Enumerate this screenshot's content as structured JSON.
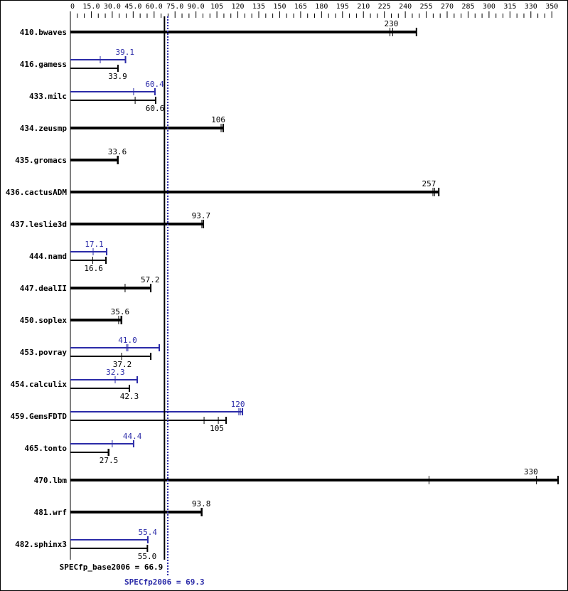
{
  "chart_data": {
    "type": "bar",
    "orientation": "horizontal",
    "xlim": [
      0,
      350
    ],
    "axis_position": "top",
    "tick_labels": [
      "0",
      "15.0",
      "30.0",
      "45.0",
      "60.0",
      "75.0",
      "90.0",
      "105",
      "120",
      "135",
      "150",
      "165",
      "180",
      "195",
      "210",
      "225",
      "240",
      "255",
      "270",
      "285",
      "300",
      "315",
      "330",
      "350"
    ],
    "colors": {
      "base": "#000000",
      "peak": "#2b2ba8"
    },
    "series": [
      {
        "name": "base",
        "label": "SPECfp_base2006 = 66.9",
        "geomean": 66.9
      },
      {
        "name": "peak",
        "label": "SPECfp2006 = 69.3",
        "geomean": 69.3
      }
    ],
    "benchmarks": [
      {
        "name": "410.bwaves",
        "base": 230,
        "base_label": "230",
        "base_runs": [
          229,
          231,
          248
        ]
      },
      {
        "name": "416.gamess",
        "base": 33.9,
        "base_label": "33.9",
        "base_runs": [
          34.1
        ],
        "peak": 39.1,
        "peak_label": "39.1",
        "peak_runs": [
          21.4,
          39.5
        ]
      },
      {
        "name": "433.milc",
        "base": 60.6,
        "base_label": "60.6",
        "base_runs": [
          46.4,
          61.1
        ],
        "peak": 60.4,
        "peak_label": "60.4",
        "peak_runs": [
          45.3,
          60.6
        ]
      },
      {
        "name": "434.zeusmp",
        "base": 106,
        "base_label": "106",
        "base_runs": [
          108,
          109.5
        ]
      },
      {
        "name": "435.gromacs",
        "base": 33.6,
        "base_label": "33.6",
        "base_runs": [
          33.6,
          34.1
        ]
      },
      {
        "name": "436.cactusADM",
        "base": 257,
        "base_label": "257",
        "base_runs": [
          259.8,
          261,
          264
        ]
      },
      {
        "name": "437.leslie3d",
        "base": 93.7,
        "base_label": "93.7",
        "base_runs": [
          94.2,
          95.3
        ]
      },
      {
        "name": "444.namd",
        "base": 16.6,
        "base_label": "16.6",
        "base_runs": [
          16,
          25.5
        ],
        "peak": 17.1,
        "peak_label": "17.1",
        "peak_runs": [
          16.3,
          26
        ]
      },
      {
        "name": "447.dealII",
        "base": 57.2,
        "base_label": "57.2",
        "base_runs": [
          39.2,
          57.6
        ]
      },
      {
        "name": "450.soplex",
        "base": 35.6,
        "base_label": "35.6",
        "base_runs": [
          34.6,
          36.2,
          36.7
        ]
      },
      {
        "name": "453.povray",
        "base": 37.2,
        "base_label": "37.2",
        "base_runs": [
          36.7,
          57.6
        ],
        "peak": 41.0,
        "peak_label": "41.0",
        "peak_runs": [
          40.2,
          41.2,
          63.7
        ]
      },
      {
        "name": "454.calculix",
        "base": 42.3,
        "base_label": "42.3",
        "base_runs": [
          42.3
        ],
        "peak": 32.3,
        "peak_label": "32.3",
        "peak_runs": [
          32.1,
          47.9
        ]
      },
      {
        "name": "459.GemsFDTD",
        "base": 105,
        "base_label": "105",
        "base_runs": [
          95.8,
          106,
          111.6
        ],
        "peak": 120,
        "peak_label": "120",
        "peak_runs": [
          120.7,
          121.8,
          123.3
        ]
      },
      {
        "name": "465.tonto",
        "base": 27.5,
        "base_label": "27.5",
        "base_runs": [
          27
        ],
        "peak": 44.4,
        "peak_label": "44.4",
        "peak_runs": [
          30,
          45.3
        ]
      },
      {
        "name": "470.lbm",
        "base": 330,
        "base_label": "330",
        "base_runs": [
          257,
          334,
          349.5
        ]
      },
      {
        "name": "481.wrf",
        "base": 93.8,
        "base_label": "93.8",
        "base_runs": [
          93.7,
          94.2
        ]
      },
      {
        "name": "482.sphinx3",
        "base": 55.0,
        "base_label": "55.0",
        "base_runs": [
          55.2
        ],
        "peak": 55.4,
        "peak_label": "55.4",
        "peak_runs": [
          55.5
        ]
      }
    ]
  }
}
